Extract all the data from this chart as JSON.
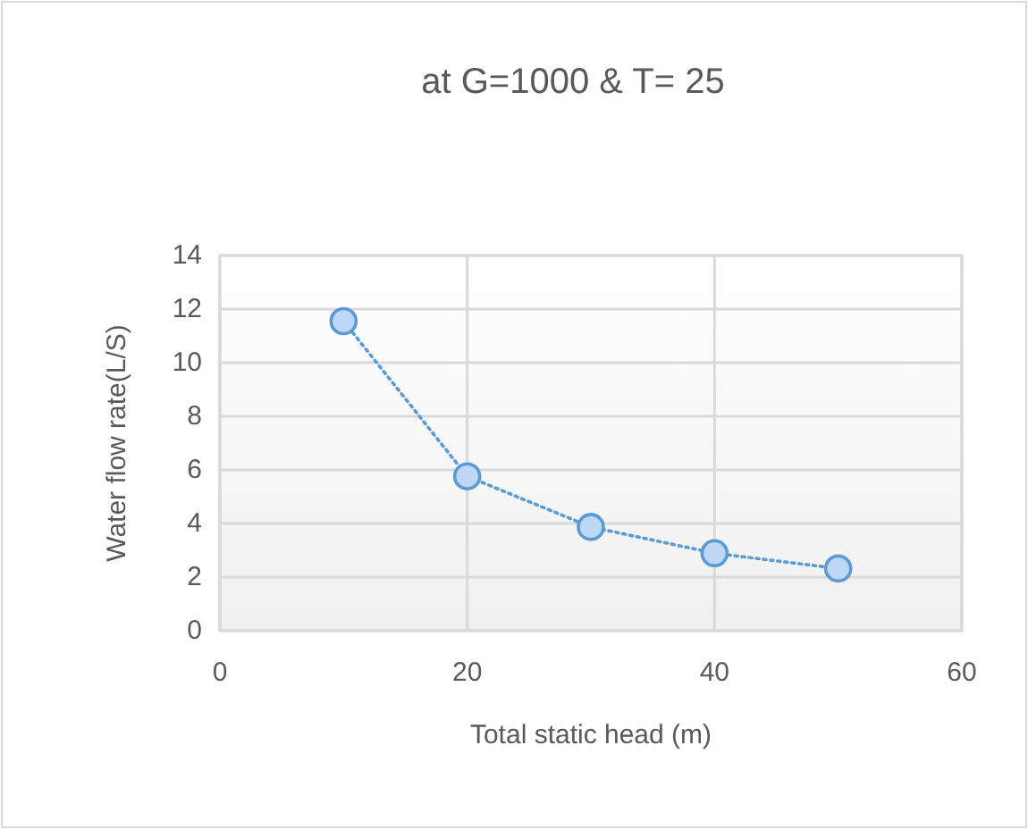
{
  "chart_data": {
    "type": "line",
    "title": "at G=1000 & T= 25",
    "xlabel": "Total static head (m)",
    "ylabel": "Water flow rate(L/S)",
    "x": [
      10,
      20,
      30,
      40,
      50
    ],
    "series": [
      {
        "color": "#5b9bd5",
        "values": [
          11.55,
          5.76,
          3.87,
          2.89,
          2.32
        ]
      }
    ],
    "xlim": [
      0,
      60
    ],
    "xticks": [
      0,
      20,
      40,
      60
    ],
    "ylim": [
      0,
      14
    ],
    "yticks": [
      0,
      2,
      4,
      6,
      8,
      10,
      12,
      14
    ],
    "grid": true,
    "marker": "circle",
    "line_style": "dotted"
  }
}
